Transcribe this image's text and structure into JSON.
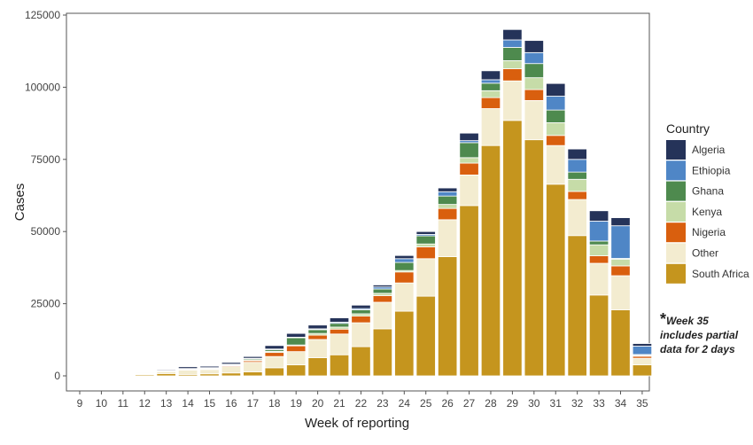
{
  "chart_data": {
    "type": "bar",
    "stacked": true,
    "title": "",
    "xlabel": "Week of reporting",
    "ylabel": "Cases",
    "ylim": [
      0,
      125000
    ],
    "yticks": [
      0,
      25000,
      50000,
      75000,
      100000,
      125000
    ],
    "grid": false,
    "legend": {
      "title": "Country",
      "placement": "right"
    },
    "categories": [
      "9",
      "10",
      "11",
      "12",
      "13",
      "14",
      "15",
      "16",
      "17",
      "18",
      "19",
      "20",
      "21",
      "22",
      "23",
      "24",
      "25",
      "26",
      "27",
      "28",
      "29",
      "30",
      "31",
      "32",
      "33",
      "34",
      "35"
    ],
    "series": [
      {
        "name": "South Africa",
        "color": "#c5951e",
        "values": [
          0,
          0,
          0,
          400,
          800,
          500,
          700,
          1000,
          1400,
          2800,
          3800,
          6300,
          7300,
          10100,
          16300,
          22400,
          27600,
          41300,
          59000,
          79800,
          88500,
          81800,
          66400,
          48600,
          28000,
          22900,
          3800
        ]
      },
      {
        "name": "Other",
        "color": "#f3ecd0",
        "values": [
          0,
          0,
          0,
          300,
          700,
          1500,
          1500,
          2200,
          3300,
          3900,
          4600,
          6300,
          7200,
          8300,
          9200,
          9800,
          13000,
          12800,
          10600,
          12800,
          13700,
          13600,
          13400,
          12500,
          11000,
          11800,
          2300
        ]
      },
      {
        "name": "Nigeria",
        "color": "#d95f0e",
        "values": [
          0,
          0,
          0,
          100,
          100,
          200,
          200,
          300,
          500,
          1400,
          2000,
          1500,
          1700,
          2300,
          2300,
          3800,
          4100,
          3900,
          4100,
          3800,
          4200,
          3800,
          3500,
          2800,
          2600,
          3400,
          700
        ]
      },
      {
        "name": "Kenya",
        "color": "#c6dca8",
        "values": [
          0,
          0,
          0,
          50,
          50,
          150,
          200,
          200,
          300,
          400,
          300,
          600,
          700,
          800,
          800,
          500,
          1000,
          1400,
          1900,
          2400,
          2800,
          4100,
          4400,
          4200,
          3800,
          2300,
          300
        ]
      },
      {
        "name": "Ghana",
        "color": "#4e8a4e",
        "values": [
          0,
          0,
          0,
          50,
          50,
          100,
          150,
          200,
          400,
          600,
          2500,
          1300,
          1300,
          1400,
          1500,
          2800,
          2800,
          2900,
          5200,
          2600,
          4600,
          4900,
          4400,
          2500,
          1300,
          300,
          300
        ]
      },
      {
        "name": "Ethiopia",
        "color": "#4f86c6",
        "values": [
          0,
          0,
          0,
          50,
          50,
          100,
          100,
          150,
          200,
          200,
          200,
          300,
          400,
          400,
          700,
          1300,
          500,
          1500,
          700,
          1200,
          2600,
          3800,
          4800,
          4400,
          6900,
          11300,
          2900
        ]
      },
      {
        "name": "Algeria",
        "color": "#253359",
        "values": [
          0,
          0,
          0,
          150,
          300,
          600,
          500,
          600,
          600,
          1200,
          1300,
          1300,
          1500,
          1200,
          700,
          1100,
          1000,
          1300,
          2600,
          3100,
          3600,
          4200,
          4400,
          3600,
          3600,
          2800,
          900
        ]
      }
    ],
    "legend_order": [
      "Algeria",
      "Ethiopia",
      "Ghana",
      "Kenya",
      "Nigeria",
      "Other",
      "South Africa"
    ],
    "annotation": {
      "marker": "*",
      "lines": [
        "Week 35",
        "includes partial",
        "data for 2 days"
      ]
    }
  }
}
